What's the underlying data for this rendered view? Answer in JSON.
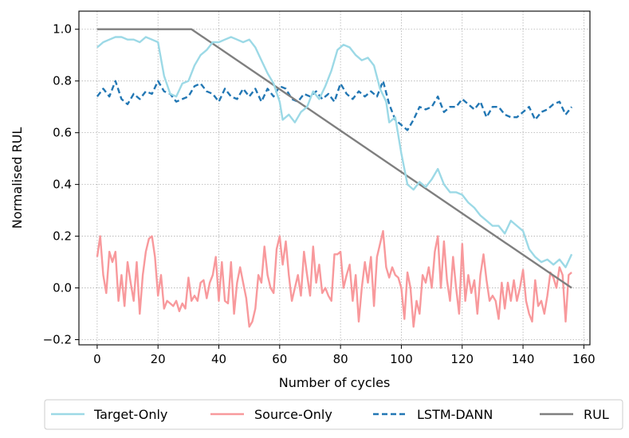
{
  "chart_data": {
    "type": "line",
    "xlabel": "Number of cycles",
    "ylabel": "Normalised RUL",
    "xlim": [
      -6,
      162
    ],
    "ylim": [
      -0.22,
      1.07
    ],
    "xticks": [
      0,
      20,
      40,
      60,
      80,
      100,
      120,
      140,
      160
    ],
    "yticks": [
      -0.2,
      0.0,
      0.2,
      0.4,
      0.6,
      0.8,
      1.0
    ],
    "xtick_labels": [
      "0",
      "20",
      "40",
      "60",
      "80",
      "100",
      "120",
      "140",
      "160"
    ],
    "ytick_labels": [
      "−0.2",
      "0.0",
      "0.2",
      "0.4",
      "0.6",
      "0.8",
      "1.0"
    ],
    "grid": true,
    "legend_position": "bottom, outside plot",
    "series": [
      {
        "name": "Target-Only",
        "color": "#9cd9e6",
        "style": "solid",
        "points": [
          [
            0,
            0.93
          ],
          [
            2,
            0.95
          ],
          [
            4,
            0.96
          ],
          [
            6,
            0.97
          ],
          [
            8,
            0.97
          ],
          [
            10,
            0.96
          ],
          [
            12,
            0.96
          ],
          [
            14,
            0.95
          ],
          [
            16,
            0.97
          ],
          [
            18,
            0.96
          ],
          [
            20,
            0.95
          ],
          [
            22,
            0.82
          ],
          [
            24,
            0.75
          ],
          [
            26,
            0.74
          ],
          [
            28,
            0.79
          ],
          [
            30,
            0.8
          ],
          [
            32,
            0.86
          ],
          [
            34,
            0.9
          ],
          [
            36,
            0.92
          ],
          [
            38,
            0.95
          ],
          [
            40,
            0.95
          ],
          [
            42,
            0.96
          ],
          [
            44,
            0.97
          ],
          [
            46,
            0.96
          ],
          [
            48,
            0.95
          ],
          [
            50,
            0.96
          ],
          [
            52,
            0.93
          ],
          [
            54,
            0.88
          ],
          [
            56,
            0.83
          ],
          [
            58,
            0.79
          ],
          [
            60,
            0.72
          ],
          [
            61,
            0.65
          ],
          [
            63,
            0.67
          ],
          [
            65,
            0.64
          ],
          [
            67,
            0.68
          ],
          [
            69,
            0.7
          ],
          [
            71,
            0.76
          ],
          [
            73,
            0.73
          ],
          [
            75,
            0.78
          ],
          [
            77,
            0.84
          ],
          [
            79,
            0.92
          ],
          [
            81,
            0.94
          ],
          [
            83,
            0.93
          ],
          [
            85,
            0.9
          ],
          [
            87,
            0.88
          ],
          [
            89,
            0.89
          ],
          [
            91,
            0.86
          ],
          [
            93,
            0.77
          ],
          [
            95,
            0.72
          ],
          [
            96,
            0.64
          ],
          [
            98,
            0.66
          ],
          [
            100,
            0.52
          ],
          [
            102,
            0.4
          ],
          [
            104,
            0.38
          ],
          [
            106,
            0.41
          ],
          [
            108,
            0.39
          ],
          [
            110,
            0.42
          ],
          [
            112,
            0.46
          ],
          [
            114,
            0.4
          ],
          [
            116,
            0.37
          ],
          [
            118,
            0.37
          ],
          [
            120,
            0.36
          ],
          [
            122,
            0.33
          ],
          [
            124,
            0.31
          ],
          [
            126,
            0.28
          ],
          [
            128,
            0.26
          ],
          [
            130,
            0.24
          ],
          [
            132,
            0.24
          ],
          [
            134,
            0.21
          ],
          [
            136,
            0.26
          ],
          [
            138,
            0.24
          ],
          [
            140,
            0.22
          ],
          [
            142,
            0.15
          ],
          [
            144,
            0.12
          ],
          [
            146,
            0.1
          ],
          [
            148,
            0.11
          ],
          [
            150,
            0.09
          ],
          [
            152,
            0.11
          ],
          [
            154,
            0.08
          ],
          [
            156,
            0.13
          ]
        ]
      },
      {
        "name": "Source-Only",
        "color": "#f8999c",
        "style": "solid",
        "points": [
          [
            0,
            0.12
          ],
          [
            1,
            0.2
          ],
          [
            2,
            0.05
          ],
          [
            3,
            -0.02
          ],
          [
            4,
            0.14
          ],
          [
            5,
            0.1
          ],
          [
            6,
            0.14
          ],
          [
            7,
            -0.05
          ],
          [
            8,
            0.05
          ],
          [
            9,
            -0.07
          ],
          [
            10,
            0.1
          ],
          [
            11,
            0.02
          ],
          [
            12,
            -0.05
          ],
          [
            13,
            0.1
          ],
          [
            14,
            -0.1
          ],
          [
            15,
            0.05
          ],
          [
            16,
            0.14
          ],
          [
            17,
            0.19
          ],
          [
            18,
            0.2
          ],
          [
            19,
            0.12
          ],
          [
            20,
            -0.03
          ],
          [
            21,
            0.05
          ],
          [
            22,
            -0.08
          ],
          [
            23,
            -0.05
          ],
          [
            24,
            -0.06
          ],
          [
            25,
            -0.07
          ],
          [
            26,
            -0.05
          ],
          [
            27,
            -0.09
          ],
          [
            28,
            -0.06
          ],
          [
            29,
            -0.08
          ],
          [
            30,
            0.04
          ],
          [
            31,
            -0.05
          ],
          [
            32,
            -0.03
          ],
          [
            33,
            -0.05
          ],
          [
            34,
            0.02
          ],
          [
            35,
            0.03
          ],
          [
            36,
            -0.04
          ],
          [
            37,
            0.02
          ],
          [
            38,
            0.05
          ],
          [
            39,
            0.12
          ],
          [
            40,
            -0.05
          ],
          [
            41,
            0.1
          ],
          [
            42,
            -0.05
          ],
          [
            43,
            -0.06
          ],
          [
            44,
            0.1
          ],
          [
            45,
            -0.1
          ],
          [
            46,
            0.02
          ],
          [
            47,
            0.08
          ],
          [
            48,
            0.02
          ],
          [
            49,
            -0.04
          ],
          [
            50,
            -0.15
          ],
          [
            51,
            -0.13
          ],
          [
            52,
            -0.08
          ],
          [
            53,
            0.05
          ],
          [
            54,
            0.02
          ],
          [
            55,
            0.16
          ],
          [
            56,
            0.05
          ],
          [
            57,
            0.0
          ],
          [
            58,
            -0.02
          ],
          [
            59,
            0.15
          ],
          [
            60,
            0.2
          ],
          [
            61,
            0.09
          ],
          [
            62,
            0.18
          ],
          [
            63,
            0.05
          ],
          [
            64,
            -0.05
          ],
          [
            65,
            0.0
          ],
          [
            66,
            0.05
          ],
          [
            67,
            -0.03
          ],
          [
            68,
            0.14
          ],
          [
            69,
            0.05
          ],
          [
            70,
            -0.03
          ],
          [
            71,
            0.16
          ],
          [
            72,
            0.02
          ],
          [
            73,
            0.09
          ],
          [
            74,
            -0.02
          ],
          [
            75,
            0.0
          ],
          [
            76,
            -0.03
          ],
          [
            77,
            -0.05
          ],
          [
            78,
            0.13
          ],
          [
            79,
            0.13
          ],
          [
            80,
            0.14
          ],
          [
            81,
            0.0
          ],
          [
            82,
            0.05
          ],
          [
            83,
            0.09
          ],
          [
            84,
            -0.05
          ],
          [
            85,
            0.05
          ],
          [
            86,
            -0.13
          ],
          [
            87,
            0.0
          ],
          [
            88,
            0.1
          ],
          [
            89,
            0.02
          ],
          [
            90,
            0.12
          ],
          [
            91,
            -0.07
          ],
          [
            92,
            0.12
          ],
          [
            93,
            0.17
          ],
          [
            94,
            0.22
          ],
          [
            95,
            0.08
          ],
          [
            96,
            0.04
          ],
          [
            97,
            0.08
          ],
          [
            98,
            0.05
          ],
          [
            99,
            0.04
          ],
          [
            100,
            0.0
          ],
          [
            101,
            -0.12
          ],
          [
            102,
            0.06
          ],
          [
            103,
            0.0
          ],
          [
            104,
            -0.15
          ],
          [
            105,
            -0.05
          ],
          [
            106,
            -0.1
          ],
          [
            107,
            0.05
          ],
          [
            108,
            0.02
          ],
          [
            109,
            0.08
          ],
          [
            110,
            0.0
          ],
          [
            111,
            0.14
          ],
          [
            112,
            0.2
          ],
          [
            113,
            0.0
          ],
          [
            114,
            0.18
          ],
          [
            115,
            0.03
          ],
          [
            116,
            -0.05
          ],
          [
            117,
            0.12
          ],
          [
            118,
            0.0
          ],
          [
            119,
            -0.1
          ],
          [
            120,
            0.17
          ],
          [
            121,
            -0.05
          ],
          [
            122,
            0.05
          ],
          [
            123,
            -0.02
          ],
          [
            124,
            0.03
          ],
          [
            125,
            -0.1
          ],
          [
            126,
            0.05
          ],
          [
            127,
            0.13
          ],
          [
            128,
            0.03
          ],
          [
            129,
            -0.05
          ],
          [
            130,
            -0.03
          ],
          [
            131,
            -0.05
          ],
          [
            132,
            -0.12
          ],
          [
            133,
            0.02
          ],
          [
            134,
            -0.08
          ],
          [
            135,
            0.02
          ],
          [
            136,
            -0.05
          ],
          [
            137,
            0.03
          ],
          [
            138,
            -0.05
          ],
          [
            139,
            0.0
          ],
          [
            140,
            0.07
          ],
          [
            141,
            -0.05
          ],
          [
            142,
            -0.1
          ],
          [
            143,
            -0.13
          ],
          [
            144,
            0.03
          ],
          [
            145,
            -0.07
          ],
          [
            146,
            -0.05
          ],
          [
            147,
            -0.1
          ],
          [
            148,
            -0.03
          ],
          [
            149,
            0.06
          ],
          [
            150,
            0.04
          ],
          [
            151,
            0.0
          ],
          [
            152,
            0.08
          ],
          [
            153,
            0.05
          ],
          [
            154,
            -0.13
          ],
          [
            155,
            0.05
          ],
          [
            156,
            0.06
          ]
        ]
      },
      {
        "name": "LSTM-DANN",
        "color": "#2277b4",
        "style": "dashed",
        "points": [
          [
            0,
            0.74
          ],
          [
            2,
            0.77
          ],
          [
            4,
            0.74
          ],
          [
            6,
            0.8
          ],
          [
            8,
            0.73
          ],
          [
            10,
            0.71
          ],
          [
            12,
            0.75
          ],
          [
            14,
            0.73
          ],
          [
            16,
            0.76
          ],
          [
            18,
            0.75
          ],
          [
            20,
            0.8
          ],
          [
            22,
            0.76
          ],
          [
            24,
            0.75
          ],
          [
            26,
            0.72
          ],
          [
            28,
            0.73
          ],
          [
            30,
            0.74
          ],
          [
            32,
            0.78
          ],
          [
            34,
            0.79
          ],
          [
            36,
            0.76
          ],
          [
            38,
            0.75
          ],
          [
            40,
            0.72
          ],
          [
            42,
            0.77
          ],
          [
            44,
            0.74
          ],
          [
            46,
            0.73
          ],
          [
            48,
            0.77
          ],
          [
            50,
            0.74
          ],
          [
            52,
            0.77
          ],
          [
            54,
            0.72
          ],
          [
            56,
            0.77
          ],
          [
            58,
            0.74
          ],
          [
            60,
            0.78
          ],
          [
            62,
            0.77
          ],
          [
            64,
            0.73
          ],
          [
            66,
            0.72
          ],
          [
            68,
            0.75
          ],
          [
            70,
            0.74
          ],
          [
            72,
            0.76
          ],
          [
            74,
            0.73
          ],
          [
            76,
            0.75
          ],
          [
            78,
            0.72
          ],
          [
            80,
            0.79
          ],
          [
            82,
            0.75
          ],
          [
            84,
            0.73
          ],
          [
            86,
            0.76
          ],
          [
            88,
            0.74
          ],
          [
            90,
            0.76
          ],
          [
            92,
            0.74
          ],
          [
            94,
            0.8
          ],
          [
            96,
            0.71
          ],
          [
            98,
            0.65
          ],
          [
            100,
            0.63
          ],
          [
            102,
            0.61
          ],
          [
            104,
            0.65
          ],
          [
            106,
            0.7
          ],
          [
            108,
            0.69
          ],
          [
            110,
            0.7
          ],
          [
            112,
            0.74
          ],
          [
            114,
            0.68
          ],
          [
            116,
            0.7
          ],
          [
            118,
            0.7
          ],
          [
            120,
            0.73
          ],
          [
            122,
            0.71
          ],
          [
            124,
            0.69
          ],
          [
            126,
            0.72
          ],
          [
            128,
            0.66
          ],
          [
            130,
            0.7
          ],
          [
            132,
            0.7
          ],
          [
            134,
            0.67
          ],
          [
            136,
            0.66
          ],
          [
            138,
            0.66
          ],
          [
            140,
            0.68
          ],
          [
            142,
            0.7
          ],
          [
            144,
            0.65
          ],
          [
            146,
            0.68
          ],
          [
            148,
            0.69
          ],
          [
            150,
            0.71
          ],
          [
            152,
            0.72
          ],
          [
            154,
            0.67
          ],
          [
            156,
            0.7
          ]
        ]
      },
      {
        "name": "RUL",
        "color": "#7f7f7f",
        "style": "solid",
        "points": [
          [
            0,
            1.0
          ],
          [
            31,
            1.0
          ],
          [
            156,
            0.0
          ]
        ]
      }
    ]
  }
}
